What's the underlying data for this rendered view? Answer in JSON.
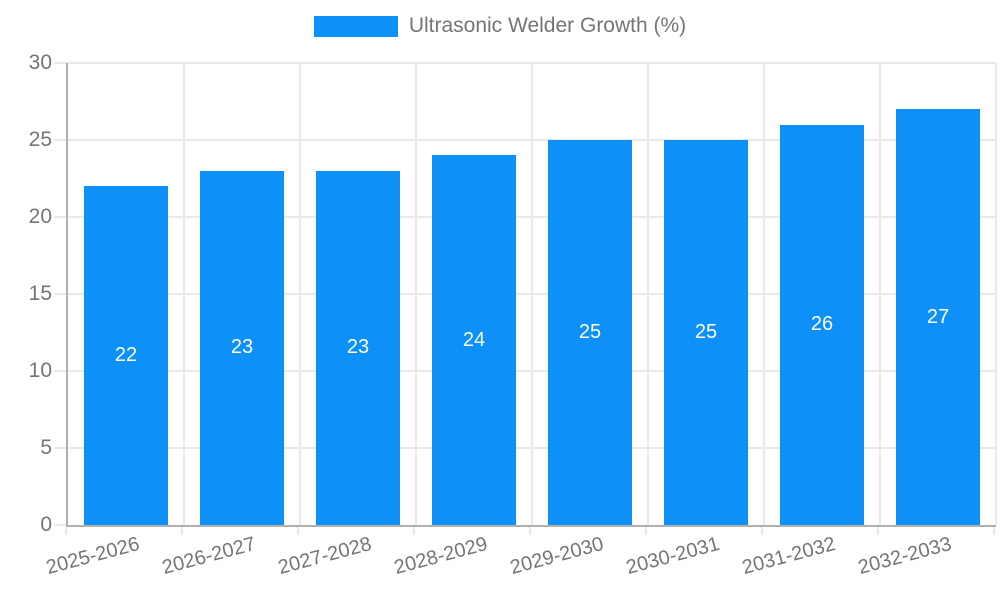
{
  "legend": {
    "label": "Ultrasonic Welder Growth (%)"
  },
  "colors": {
    "bar": "#0e90f9",
    "grid": "#e9e9e9",
    "axis": "#b0b0b0",
    "axis_text": "#757575",
    "value_label": "#ffffff",
    "background": "#ffffff"
  },
  "chart_data": {
    "type": "bar",
    "title": "",
    "xlabel": "",
    "ylabel": "",
    "categories": [
      "2025-2026",
      "2026-2027",
      "2027-2028",
      "2028-2029",
      "2029-2030",
      "2030-2031",
      "2031-2032",
      "2032-2033"
    ],
    "series": [
      {
        "name": "Ultrasonic Welder Growth (%)",
        "values": [
          22,
          23,
          23,
          24,
          25,
          25,
          26,
          27
        ]
      }
    ],
    "ylim": [
      0,
      30
    ],
    "yticks": [
      0,
      5,
      10,
      15,
      20,
      25,
      30
    ],
    "grid": true,
    "legend_position": "top-center",
    "value_labels": "inside-center",
    "x_label_rotation_deg": -15
  }
}
